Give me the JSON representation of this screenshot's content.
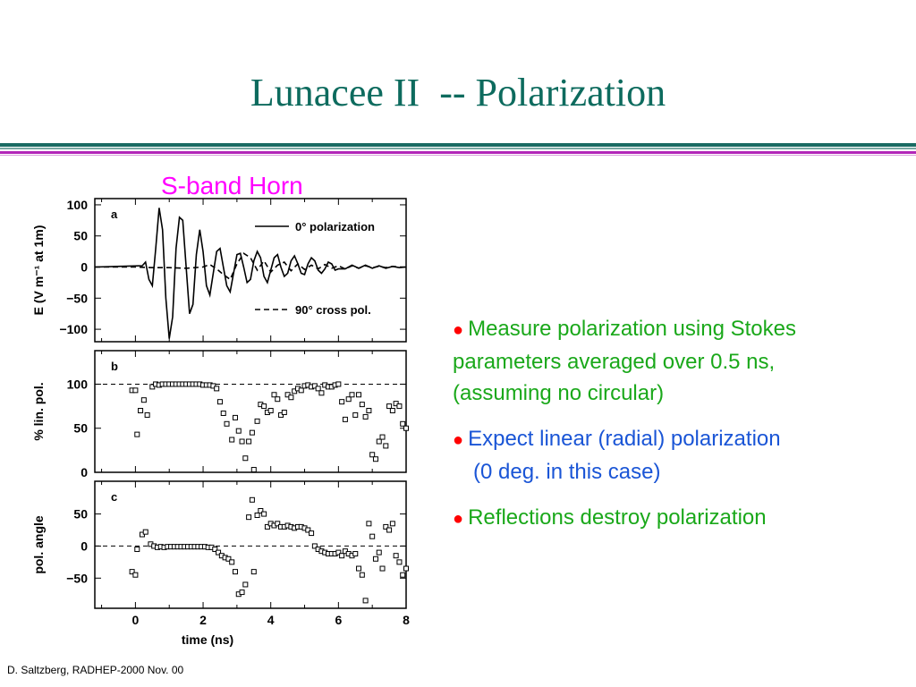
{
  "slide": {
    "title": "Lunacee II  -- Polarization",
    "figure_caption": "S-band Horn",
    "footer": "D. Saltzberg, RADHEP-2000  Nov. 00"
  },
  "bullets": [
    {
      "line1": "Measure polarization using Stokes",
      "line2": "parameters averaged over 0.5 ns,",
      "line3": "(assuming no circular)"
    },
    {
      "line1": "Expect linear (radial) polarization",
      "line2": "(0 deg. in this case)"
    },
    {
      "line1": "Reflections destroy polarization"
    }
  ],
  "chart_data": [
    {
      "type": "line",
      "panel_label": "a",
      "ylabel": "E  (V m⁻¹ at 1m)",
      "xlim": [
        -1.2,
        8.0
      ],
      "ylim": [
        -120,
        110
      ],
      "yticks": [
        100,
        50,
        0,
        -50,
        -100
      ],
      "legend_position": "right",
      "series": [
        {
          "name": "0° polarization",
          "style": "solid",
          "x": [
            -1.2,
            0.2,
            0.3,
            0.4,
            0.5,
            0.6,
            0.7,
            0.8,
            0.9,
            1.0,
            1.1,
            1.2,
            1.3,
            1.4,
            1.5,
            1.6,
            1.7,
            1.8,
            1.9,
            2.0,
            2.1,
            2.2,
            2.3,
            2.4,
            2.5,
            2.6,
            2.7,
            2.8,
            2.9,
            3.0,
            3.1,
            3.2,
            3.3,
            3.4,
            3.5,
            3.6,
            3.7,
            3.8,
            3.9,
            4.0,
            4.1,
            4.2,
            4.3,
            4.4,
            4.5,
            4.6,
            4.7,
            4.8,
            4.9,
            5.0,
            5.1,
            5.2,
            5.3,
            5.4,
            5.5,
            5.6,
            5.7,
            5.8,
            5.9,
            6.0,
            6.2,
            6.4,
            6.6,
            6.8,
            7.0,
            7.2,
            7.4,
            7.6,
            7.8,
            8.0
          ],
          "y": [
            0,
            2,
            8,
            -20,
            -30,
            30,
            95,
            60,
            -50,
            -115,
            -80,
            30,
            80,
            75,
            0,
            -75,
            -60,
            20,
            60,
            25,
            -30,
            -45,
            -10,
            25,
            30,
            0,
            -30,
            -40,
            -10,
            20,
            22,
            0,
            -25,
            -20,
            10,
            25,
            15,
            -15,
            -25,
            -5,
            15,
            20,
            0,
            -15,
            -10,
            10,
            18,
            5,
            -10,
            -12,
            5,
            15,
            10,
            -5,
            -10,
            -3,
            8,
            5,
            -5,
            -3,
            -3,
            3,
            -2,
            3,
            -2,
            2,
            -2,
            1,
            -1,
            0
          ]
        },
        {
          "name": "90° cross pol.",
          "style": "dashed",
          "x": [
            -1.2,
            0.0,
            0.5,
            1.0,
            1.5,
            2.0,
            2.2,
            2.4,
            2.6,
            2.8,
            3.0,
            3.2,
            3.4,
            3.6,
            3.8,
            4.0,
            4.2,
            4.4,
            4.6,
            4.8,
            5.0,
            5.2,
            5.4,
            5.6,
            5.8,
            6.0,
            6.2,
            6.4,
            6.6,
            6.8,
            7.0,
            7.2,
            7.4,
            7.6,
            7.8,
            8.0
          ],
          "y": [
            0,
            0,
            -1,
            -1,
            -2,
            0,
            4,
            -3,
            -12,
            -20,
            5,
            22,
            15,
            -5,
            10,
            -8,
            3,
            8,
            -6,
            5,
            -4,
            3,
            -3,
            4,
            -2,
            2,
            -3,
            2,
            -2,
            2,
            -1,
            1,
            -1,
            1,
            0,
            0
          ]
        }
      ]
    },
    {
      "type": "scatter",
      "panel_label": "b",
      "ylabel": "% lin. pol.",
      "xlim": [
        -1.2,
        8.0
      ],
      "ylim": [
        0,
        138
      ],
      "yticks": [
        100,
        50,
        0
      ],
      "reference_line": 100,
      "x": [
        -0.1,
        0.0,
        0.05,
        0.15,
        0.25,
        0.35,
        0.5,
        0.6,
        0.7,
        0.8,
        0.9,
        1.0,
        1.1,
        1.2,
        1.3,
        1.4,
        1.5,
        1.6,
        1.7,
        1.8,
        1.9,
        2.0,
        2.1,
        2.2,
        2.3,
        2.4,
        2.5,
        2.6,
        2.7,
        2.85,
        2.95,
        3.05,
        3.15,
        3.25,
        3.35,
        3.45,
        3.5,
        3.6,
        3.7,
        3.8,
        3.9,
        4.0,
        4.1,
        4.2,
        4.3,
        4.4,
        4.5,
        4.6,
        4.7,
        4.8,
        4.9,
        5.0,
        5.1,
        5.2,
        5.3,
        5.4,
        5.5,
        5.6,
        5.7,
        5.8,
        5.9,
        6.0,
        6.1,
        6.2,
        6.3,
        6.4,
        6.5,
        6.6,
        6.7,
        6.8,
        6.9,
        7.0,
        7.1,
        7.2,
        7.3,
        7.4,
        7.5,
        7.6,
        7.7,
        7.8,
        7.9,
        8.0
      ],
      "y": [
        93,
        93,
        43,
        70,
        82,
        65,
        97,
        100,
        99,
        100,
        100,
        100,
        100,
        100,
        100,
        100,
        100,
        100,
        100,
        100,
        100,
        99,
        99,
        99,
        98,
        95,
        80,
        67,
        55,
        37,
        62,
        47,
        35,
        16,
        35,
        45,
        3,
        58,
        77,
        75,
        68,
        70,
        88,
        83,
        65,
        68,
        88,
        85,
        92,
        95,
        93,
        98,
        99,
        97,
        98,
        95,
        90,
        99,
        97,
        97,
        99,
        100,
        80,
        60,
        83,
        88,
        65,
        88,
        77,
        63,
        70,
        20,
        15,
        35,
        40,
        30,
        75,
        70,
        78,
        75,
        55,
        50
      ]
    },
    {
      "type": "scatter",
      "panel_label": "c",
      "ylabel": "pol. angle",
      "xlim": [
        -1.2,
        8.0
      ],
      "ylim": [
        -97,
        101
      ],
      "yticks": [
        50,
        0,
        -50
      ],
      "xticks": [
        0,
        2,
        4,
        6,
        8
      ],
      "xlabel": "time (ns)",
      "reference_line": 0,
      "x": [
        -0.1,
        0.0,
        0.05,
        0.2,
        0.3,
        0.45,
        0.55,
        0.65,
        0.75,
        0.85,
        0.95,
        1.05,
        1.15,
        1.25,
        1.35,
        1.45,
        1.55,
        1.65,
        1.75,
        1.85,
        1.95,
        2.05,
        2.15,
        2.25,
        2.35,
        2.45,
        2.55,
        2.65,
        2.75,
        2.85,
        2.95,
        3.05,
        3.15,
        3.25,
        3.35,
        3.45,
        3.5,
        3.6,
        3.7,
        3.8,
        3.9,
        4.0,
        4.1,
        4.2,
        4.3,
        4.4,
        4.5,
        4.6,
        4.7,
        4.8,
        4.9,
        5.0,
        5.1,
        5.2,
        5.3,
        5.4,
        5.5,
        5.6,
        5.7,
        5.8,
        5.9,
        6.0,
        6.1,
        6.2,
        6.3,
        6.4,
        6.5,
        6.6,
        6.7,
        6.8,
        6.9,
        7.0,
        7.1,
        7.2,
        7.3,
        7.4,
        7.5,
        7.6,
        7.7,
        7.8,
        7.9,
        8.0
      ],
      "y": [
        -40,
        -45,
        -5,
        18,
        22,
        3,
        0,
        -2,
        -1,
        -2,
        -1,
        -1,
        -1,
        -1,
        -1,
        -1,
        -1,
        -1,
        -1,
        -1,
        -1,
        -1,
        -2,
        -2,
        -5,
        -10,
        -15,
        -18,
        -20,
        -25,
        -40,
        -75,
        -72,
        -60,
        45,
        72,
        -40,
        48,
        55,
        50,
        30,
        35,
        32,
        35,
        30,
        30,
        32,
        30,
        28,
        30,
        30,
        28,
        25,
        20,
        0,
        -5,
        -8,
        -10,
        -12,
        -12,
        -12,
        -10,
        -15,
        -8,
        -12,
        -15,
        -12,
        -35,
        -45,
        -85,
        35,
        15,
        -20,
        -10,
        -35,
        30,
        25,
        35,
        -15,
        -25,
        -45,
        -35
      ]
    }
  ]
}
